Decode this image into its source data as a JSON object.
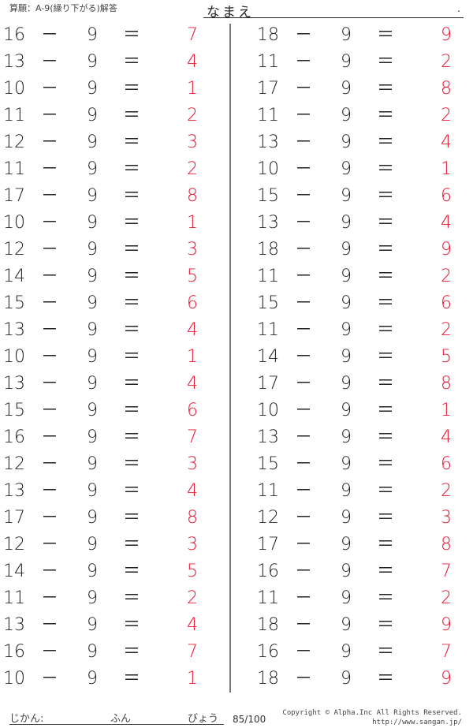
{
  "header": {
    "title": "算願：A-9(繰り下がる)解答",
    "name_label": "なまえ",
    "name_dot": "."
  },
  "answer_color": "#e8152e",
  "operator": "－",
  "equals": "＝",
  "left": [
    {
      "a": 16,
      "b": 9,
      "ans": 7
    },
    {
      "a": 13,
      "b": 9,
      "ans": 4
    },
    {
      "a": 10,
      "b": 9,
      "ans": 1
    },
    {
      "a": 11,
      "b": 9,
      "ans": 2
    },
    {
      "a": 12,
      "b": 9,
      "ans": 3
    },
    {
      "a": 11,
      "b": 9,
      "ans": 2
    },
    {
      "a": 17,
      "b": 9,
      "ans": 8
    },
    {
      "a": 10,
      "b": 9,
      "ans": 1
    },
    {
      "a": 12,
      "b": 9,
      "ans": 3
    },
    {
      "a": 14,
      "b": 9,
      "ans": 5
    },
    {
      "a": 15,
      "b": 9,
      "ans": 6
    },
    {
      "a": 13,
      "b": 9,
      "ans": 4
    },
    {
      "a": 10,
      "b": 9,
      "ans": 1
    },
    {
      "a": 13,
      "b": 9,
      "ans": 4
    },
    {
      "a": 15,
      "b": 9,
      "ans": 6
    },
    {
      "a": 16,
      "b": 9,
      "ans": 7
    },
    {
      "a": 12,
      "b": 9,
      "ans": 3
    },
    {
      "a": 13,
      "b": 9,
      "ans": 4
    },
    {
      "a": 17,
      "b": 9,
      "ans": 8
    },
    {
      "a": 12,
      "b": 9,
      "ans": 3
    },
    {
      "a": 14,
      "b": 9,
      "ans": 5
    },
    {
      "a": 11,
      "b": 9,
      "ans": 2
    },
    {
      "a": 13,
      "b": 9,
      "ans": 4
    },
    {
      "a": 16,
      "b": 9,
      "ans": 7
    },
    {
      "a": 10,
      "b": 9,
      "ans": 1
    }
  ],
  "right": [
    {
      "a": 18,
      "b": 9,
      "ans": 9
    },
    {
      "a": 11,
      "b": 9,
      "ans": 2
    },
    {
      "a": 17,
      "b": 9,
      "ans": 8
    },
    {
      "a": 11,
      "b": 9,
      "ans": 2
    },
    {
      "a": 13,
      "b": 9,
      "ans": 4
    },
    {
      "a": 10,
      "b": 9,
      "ans": 1
    },
    {
      "a": 15,
      "b": 9,
      "ans": 6
    },
    {
      "a": 13,
      "b": 9,
      "ans": 4
    },
    {
      "a": 18,
      "b": 9,
      "ans": 9
    },
    {
      "a": 11,
      "b": 9,
      "ans": 2
    },
    {
      "a": 15,
      "b": 9,
      "ans": 6
    },
    {
      "a": 11,
      "b": 9,
      "ans": 2
    },
    {
      "a": 14,
      "b": 9,
      "ans": 5
    },
    {
      "a": 17,
      "b": 9,
      "ans": 8
    },
    {
      "a": 10,
      "b": 9,
      "ans": 1
    },
    {
      "a": 13,
      "b": 9,
      "ans": 4
    },
    {
      "a": 15,
      "b": 9,
      "ans": 6
    },
    {
      "a": 11,
      "b": 9,
      "ans": 2
    },
    {
      "a": 12,
      "b": 9,
      "ans": 3
    },
    {
      "a": 17,
      "b": 9,
      "ans": 8
    },
    {
      "a": 16,
      "b": 9,
      "ans": 7
    },
    {
      "a": 11,
      "b": 9,
      "ans": 2
    },
    {
      "a": 18,
      "b": 9,
      "ans": 9
    },
    {
      "a": 16,
      "b": 9,
      "ans": 7
    },
    {
      "a": 18,
      "b": 9,
      "ans": 9
    }
  ],
  "footer": {
    "time_label": "じかん:",
    "minutes_label": "ふん",
    "seconds_label": "びょう",
    "score": "85/100",
    "copyright": "Copyright © Alpha.Inc All Rights Reserved.",
    "url": "http://www.sangan.jp/"
  }
}
